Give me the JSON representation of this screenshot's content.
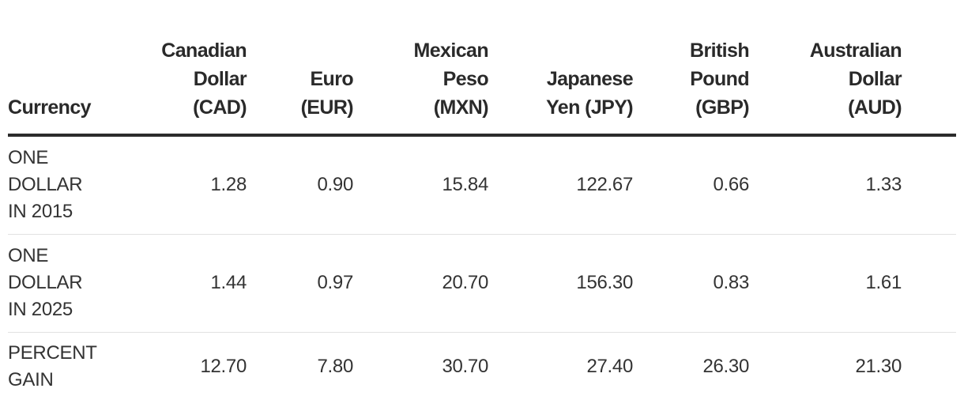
{
  "table": {
    "header": [
      "Currency",
      "Canadian Dollar (CAD)",
      "Euro (EUR)",
      "Mexican Peso (MXN)",
      "Japanese Yen (JPY)",
      "British Pound (GBP)",
      "Australian Dollar (AUD)"
    ],
    "rows": [
      [
        "ONE DOLLAR IN 2015",
        "1.28",
        "0.90",
        "15.84",
        "122.67",
        "0.66",
        "1.33"
      ],
      [
        "ONE DOLLAR IN 2025",
        "1.44",
        "0.97",
        "20.70",
        "156.30",
        "0.83",
        "1.61"
      ],
      [
        "PERCENT GAIN",
        "12.70",
        "7.80",
        "30.70",
        "27.40",
        "26.30",
        "21.30"
      ]
    ]
  }
}
